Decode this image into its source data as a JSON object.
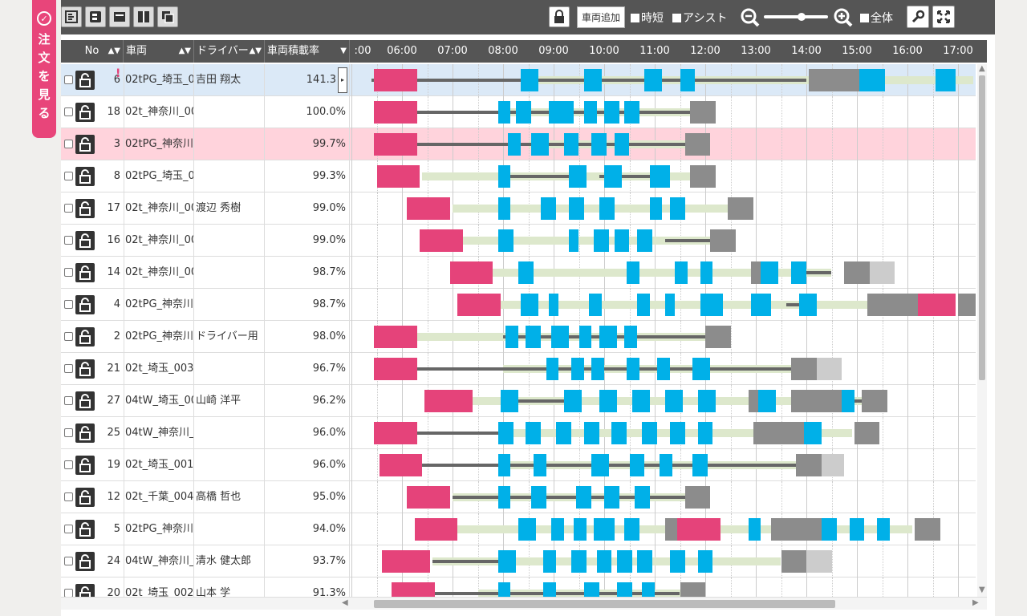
{
  "side_tab": {
    "label_chars": [
      "注",
      "文",
      "を",
      "見",
      "る"
    ]
  },
  "toolbar": {
    "add_vehicle": "車両追加",
    "short_time": "時短",
    "assist": "アシスト",
    "all": "全体"
  },
  "columns": {
    "no": "No",
    "vehicle": "車両",
    "driver": "ドライバー",
    "load_rate": "車両積載率"
  },
  "timeline": {
    "ticks": [
      ":00",
      "06:00",
      "07:00",
      "08:00",
      "09:00",
      "10:00",
      "11:00",
      "12:00",
      "13:00",
      "14:00",
      "15:00",
      "16:00",
      "17:00"
    ]
  },
  "colors": {
    "pick": "#e5437a",
    "drive": "#666666",
    "idle": "#dde8cc",
    "stop": "#00b0e8",
    "return": "#8c8c8c",
    "light_gray": "#cccccc"
  },
  "rows": [
    {
      "no": "6",
      "vehicle": "02tPG_埼玉_0",
      "driver": "吉田 翔太",
      "rate": "141.3",
      "state": "selected",
      "warning": true,
      "bars": [
        [
          "drive",
          5.4,
          8.6
        ],
        [
          "idle",
          8.6,
          17.3
        ],
        [
          "drive",
          8.6,
          14.0
        ],
        [
          "pick",
          5.45,
          6.3
        ],
        [
          "stop",
          8.35,
          8.7
        ],
        [
          "stop",
          9.6,
          9.95
        ],
        [
          "stop",
          10.8,
          11.15
        ],
        [
          "stop",
          11.5,
          11.8
        ],
        [
          "return",
          14.05,
          15.05
        ],
        [
          "stop",
          15.05,
          15.55
        ],
        [
          "stop",
          16.55,
          16.95
        ]
      ]
    },
    {
      "no": "18",
      "vehicle": "02t_神奈川_00",
      "driver": "",
      "rate": "100.0%",
      "state": "",
      "bars": [
        [
          "drive",
          6.3,
          11.7
        ],
        [
          "idle",
          8.0,
          11.7
        ],
        [
          "pick",
          5.45,
          6.3
        ],
        [
          "stop",
          7.9,
          8.15
        ],
        [
          "stop",
          8.25,
          8.55
        ],
        [
          "stop",
          8.9,
          9.4
        ],
        [
          "stop",
          9.6,
          9.85
        ],
        [
          "stop",
          10.0,
          10.3
        ],
        [
          "stop",
          10.4,
          10.7
        ],
        [
          "return",
          11.7,
          12.2
        ]
      ]
    },
    {
      "no": "3",
      "vehicle": "02tPG_神奈川",
      "driver": "",
      "rate": "99.7%",
      "state": "warn",
      "bars": [
        [
          "drive",
          6.3,
          11.6
        ],
        [
          "idle",
          8.5,
          11.6
        ],
        [
          "pick",
          5.45,
          6.3
        ],
        [
          "stop",
          8.1,
          8.35
        ],
        [
          "stop",
          8.55,
          8.9
        ],
        [
          "stop",
          9.2,
          9.5
        ],
        [
          "stop",
          9.75,
          10.05
        ],
        [
          "stop",
          10.2,
          10.5
        ],
        [
          "return",
          11.6,
          12.1
        ]
      ]
    },
    {
      "no": "8",
      "vehicle": "02tPG_埼玉_0",
      "driver": "",
      "rate": "99.3%",
      "state": "",
      "bars": [
        [
          "idle",
          6.4,
          11.7
        ],
        [
          "drive",
          8.1,
          9.3
        ],
        [
          "drive",
          9.9,
          11.0
        ],
        [
          "pick",
          5.5,
          6.35
        ],
        [
          "stop",
          7.9,
          8.15
        ],
        [
          "stop",
          9.3,
          9.65
        ],
        [
          "stop",
          10.0,
          10.35
        ],
        [
          "stop",
          10.9,
          11.3
        ],
        [
          "return",
          11.7,
          12.2
        ]
      ]
    },
    {
      "no": "17",
      "vehicle": "02t_神奈川_00",
      "driver": "渡辺 秀樹",
      "rate": "99.0%",
      "state": "",
      "bars": [
        [
          "idle",
          7.0,
          12.5
        ],
        [
          "pick",
          6.1,
          6.95
        ],
        [
          "stop",
          7.9,
          8.15
        ],
        [
          "stop",
          8.75,
          9.05
        ],
        [
          "stop",
          9.3,
          9.6
        ],
        [
          "stop",
          9.9,
          10.2
        ],
        [
          "stop",
          10.9,
          11.15
        ],
        [
          "stop",
          11.3,
          11.6
        ],
        [
          "return",
          12.45,
          12.95
        ]
      ]
    },
    {
      "no": "16",
      "vehicle": "02t_神奈川_00",
      "driver": "",
      "rate": "99.0%",
      "state": "",
      "bars": [
        [
          "idle",
          6.9,
          12.1
        ],
        [
          "drive",
          11.2,
          12.1
        ],
        [
          "pick",
          6.35,
          7.2
        ],
        [
          "stop",
          7.9,
          8.2
        ],
        [
          "stop",
          9.3,
          9.5
        ],
        [
          "stop",
          9.8,
          10.1
        ],
        [
          "stop",
          10.2,
          10.5
        ],
        [
          "stop",
          10.65,
          10.95
        ],
        [
          "return",
          12.1,
          12.6
        ]
      ]
    },
    {
      "no": "14",
      "vehicle": "02t_神奈川_00",
      "driver": "",
      "rate": "98.7%",
      "state": "",
      "bars": [
        [
          "idle",
          7.7,
          14.5
        ],
        [
          "drive",
          13.7,
          14.5
        ],
        [
          "pick",
          6.95,
          7.8
        ],
        [
          "stop",
          8.3,
          8.6
        ],
        [
          "stop",
          10.45,
          10.7
        ],
        [
          "stop",
          11.4,
          11.65
        ],
        [
          "stop",
          11.9,
          12.15
        ],
        [
          "return",
          12.9,
          13.1
        ],
        [
          "stop",
          13.1,
          13.45
        ],
        [
          "stop",
          13.7,
          14.0
        ],
        [
          "return",
          14.75,
          15.25
        ],
        [
          "light_gray",
          15.25,
          15.75
        ]
      ]
    },
    {
      "no": "4",
      "vehicle": "02tPG_神奈川",
      "driver": "",
      "rate": "98.7%",
      "state": "",
      "bars": [
        [
          "idle",
          7.4,
          15.2
        ],
        [
          "drive",
          13.6,
          14.0
        ],
        [
          "pick",
          7.1,
          7.95
        ],
        [
          "stop",
          8.35,
          8.7
        ],
        [
          "stop",
          8.9,
          9.1
        ],
        [
          "stop",
          9.7,
          9.95
        ],
        [
          "stop",
          10.65,
          10.9
        ],
        [
          "stop",
          11.2,
          11.4
        ],
        [
          "stop",
          11.9,
          12.35
        ],
        [
          "stop",
          12.9,
          13.3
        ],
        [
          "stop",
          13.85,
          14.2
        ],
        [
          "return",
          15.2,
          16.2
        ],
        [
          "pick",
          16.2,
          16.95
        ],
        [
          "return",
          17.0,
          17.5
        ]
      ]
    },
    {
      "no": "2",
      "vehicle": "02tPG_神奈川",
      "driver": "ドライバー用",
      "rate": "98.0%",
      "state": "",
      "bars": [
        [
          "idle",
          6.3,
          12.0
        ],
        [
          "drive",
          8.0,
          12.0
        ],
        [
          "pick",
          5.45,
          6.3
        ],
        [
          "stop",
          8.05,
          8.3
        ],
        [
          "stop",
          8.45,
          8.75
        ],
        [
          "stop",
          8.95,
          9.3
        ],
        [
          "stop",
          9.5,
          9.75
        ],
        [
          "stop",
          9.9,
          10.25
        ],
        [
          "stop",
          10.4,
          10.65
        ],
        [
          "return",
          12.0,
          12.5
        ]
      ]
    },
    {
      "no": "21",
      "vehicle": "02t_埼玉_003",
      "driver": "",
      "rate": "96.7%",
      "state": "",
      "bars": [
        [
          "drive",
          6.3,
          13.7
        ],
        [
          "idle",
          8.0,
          14.5
        ],
        [
          "pick",
          5.45,
          6.3
        ],
        [
          "stop",
          8.85,
          9.1
        ],
        [
          "stop",
          9.35,
          9.6
        ],
        [
          "stop",
          9.75,
          10.0
        ],
        [
          "stop",
          10.45,
          10.7
        ],
        [
          "stop",
          11.05,
          11.3
        ],
        [
          "stop",
          11.75,
          12.1
        ],
        [
          "return",
          13.7,
          14.2
        ],
        [
          "light_gray",
          14.2,
          14.7
        ]
      ]
    },
    {
      "no": "27",
      "vehicle": "04tW_埼玉_00",
      "driver": "山崎 洋平",
      "rate": "96.2%",
      "state": "",
      "bars": [
        [
          "idle",
          7.4,
          15.2
        ],
        [
          "drive",
          8.2,
          9.2
        ],
        [
          "drive",
          14.3,
          15.2
        ],
        [
          "pick",
          6.45,
          7.4
        ],
        [
          "stop",
          7.95,
          8.3
        ],
        [
          "stop",
          9.2,
          9.55
        ],
        [
          "stop",
          9.9,
          10.25
        ],
        [
          "stop",
          10.55,
          10.9
        ],
        [
          "stop",
          11.2,
          11.55
        ],
        [
          "stop",
          11.85,
          12.2
        ],
        [
          "return",
          12.85,
          13.05
        ],
        [
          "stop",
          13.05,
          13.4
        ],
        [
          "return",
          13.7,
          14.7
        ],
        [
          "stop",
          14.7,
          14.95
        ],
        [
          "return",
          15.1,
          15.6
        ]
      ]
    },
    {
      "no": "25",
      "vehicle": "04tW_神奈川_",
      "driver": "",
      "rate": "96.0%",
      "state": "",
      "bars": [
        [
          "drive",
          6.3,
          7.9
        ],
        [
          "idle",
          7.9,
          14.9
        ],
        [
          "pick",
          5.45,
          6.3
        ],
        [
          "stop",
          7.9,
          8.2
        ],
        [
          "stop",
          8.45,
          8.75
        ],
        [
          "stop",
          9.05,
          9.35
        ],
        [
          "stop",
          9.6,
          9.9
        ],
        [
          "stop",
          10.15,
          10.45
        ],
        [
          "stop",
          10.75,
          11.05
        ],
        [
          "stop",
          11.3,
          11.6
        ],
        [
          "stop",
          11.85,
          12.15
        ],
        [
          "return",
          12.95,
          13.95
        ],
        [
          "stop",
          13.95,
          14.3
        ],
        [
          "return",
          14.95,
          15.45
        ]
      ]
    },
    {
      "no": "19",
      "vehicle": "02t_埼玉_001",
      "driver": "",
      "rate": "96.0%",
      "state": "",
      "bars": [
        [
          "drive",
          6.35,
          13.8
        ],
        [
          "idle",
          8.1,
          14.3
        ],
        [
          "pick",
          5.55,
          6.4
        ],
        [
          "stop",
          7.9,
          8.15
        ],
        [
          "stop",
          8.6,
          8.85
        ],
        [
          "stop",
          9.75,
          10.1
        ],
        [
          "stop",
          10.5,
          10.8
        ],
        [
          "stop",
          11.1,
          11.35
        ],
        [
          "stop",
          11.75,
          12.05
        ],
        [
          "return",
          13.8,
          14.3
        ],
        [
          "light_gray",
          14.3,
          14.75
        ]
      ]
    },
    {
      "no": "12",
      "vehicle": "02t_千葉_004",
      "driver": "高橋 哲也",
      "rate": "95.0%",
      "state": "",
      "bars": [
        [
          "drive",
          7.0,
          11.6
        ],
        [
          "idle",
          7.0,
          11.6
        ],
        [
          "pick",
          6.1,
          6.95
        ],
        [
          "stop",
          7.9,
          8.15
        ],
        [
          "stop",
          8.55,
          8.85
        ],
        [
          "stop",
          9.45,
          9.75
        ],
        [
          "stop",
          10.0,
          10.3
        ],
        [
          "stop",
          10.6,
          10.9
        ],
        [
          "return",
          11.6,
          12.1
        ]
      ]
    },
    {
      "no": "5",
      "vehicle": "02tPG_神奈川",
      "driver": "",
      "rate": "94.0%",
      "state": "",
      "bars": [
        [
          "idle",
          7.0,
          16.1
        ],
        [
          "pick",
          6.25,
          7.1
        ],
        [
          "stop",
          8.3,
          8.65
        ],
        [
          "stop",
          8.95,
          9.2
        ],
        [
          "stop",
          9.4,
          9.65
        ],
        [
          "stop",
          9.8,
          10.2
        ],
        [
          "stop",
          10.4,
          10.7
        ],
        [
          "return",
          11.2,
          11.45
        ],
        [
          "pick",
          11.45,
          12.3
        ],
        [
          "stop",
          12.85,
          13.1
        ],
        [
          "return",
          13.3,
          14.3
        ],
        [
          "stop",
          14.3,
          14.6
        ],
        [
          "stop",
          14.85,
          15.15
        ],
        [
          "stop",
          15.4,
          15.65
        ],
        [
          "return",
          16.15,
          16.65
        ]
      ]
    },
    {
      "no": "24",
      "vehicle": "04tW_神奈川_",
      "driver": "清水 健太郎",
      "rate": "93.7%",
      "state": "",
      "bars": [
        [
          "idle",
          6.6,
          13.5
        ],
        [
          "drive",
          6.6,
          8.0
        ],
        [
          "pick",
          5.6,
          6.55
        ],
        [
          "stop",
          7.9,
          8.25
        ],
        [
          "stop",
          8.8,
          9.05
        ],
        [
          "stop",
          9.35,
          9.65
        ],
        [
          "stop",
          9.85,
          10.15
        ],
        [
          "stop",
          10.25,
          10.55
        ],
        [
          "stop",
          10.65,
          10.95
        ],
        [
          "stop",
          11.3,
          11.6
        ],
        [
          "stop",
          11.85,
          12.15
        ],
        [
          "return",
          13.5,
          14.0
        ],
        [
          "light_gray",
          14.0,
          14.5
        ]
      ]
    },
    {
      "no": "20",
      "vehicle": "02t_埼玉_002",
      "driver": "山本 学",
      "rate": "91.3%",
      "state": "",
      "bars": [
        [
          "drive",
          6.6,
          11.5
        ],
        [
          "idle",
          7.5,
          11.5
        ],
        [
          "pick",
          5.8,
          6.65
        ],
        [
          "stop",
          7.9,
          8.15
        ],
        [
          "stop",
          8.8,
          9.05
        ],
        [
          "stop",
          9.6,
          9.9
        ],
        [
          "stop",
          10.25,
          10.55
        ],
        [
          "stop",
          10.75,
          11.0
        ],
        [
          "return",
          11.5,
          12.0
        ]
      ]
    }
  ]
}
